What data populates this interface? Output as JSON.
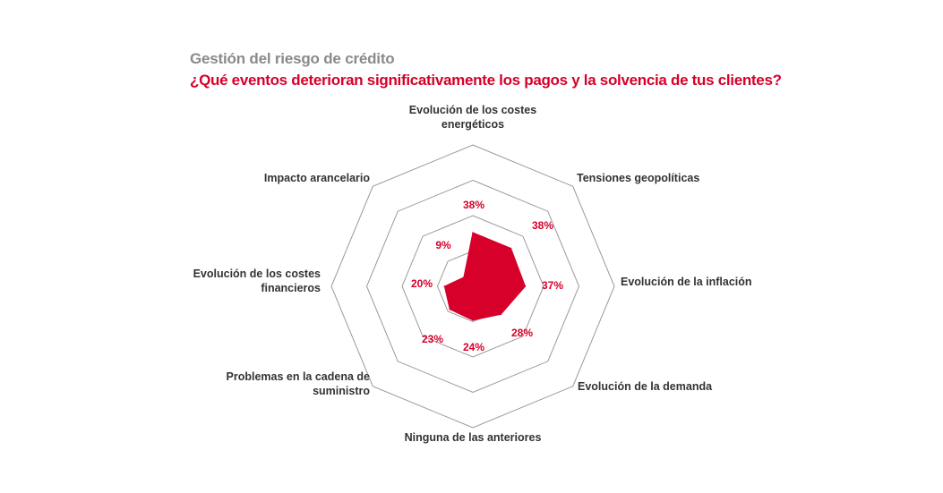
{
  "header": {
    "title": "Gestión del riesgo de crédito",
    "subtitle": "¿Qué eventos deterioran significativamente los pagos y la solvencia de tus clientes?"
  },
  "colors": {
    "accent": "#d6002a",
    "grid": "#9a9a9a",
    "title": "#8a8a8a",
    "labels": "#333333"
  },
  "chart_data": {
    "type": "radar",
    "title": "Gestión del riesgo de crédito",
    "subtitle": "¿Qué eventos deterioran significativamente los pagos y la solvencia de tus clientes?",
    "axes": [
      {
        "lines": [
          "Evolución de los costes",
          "energéticos"
        ],
        "value": 38,
        "value_label": "38%"
      },
      {
        "lines": [
          "Tensiones geopolíticas"
        ],
        "value": 38,
        "value_label": "38%"
      },
      {
        "lines": [
          "Evolución de la inflación"
        ],
        "value": 37,
        "value_label": "37%"
      },
      {
        "lines": [
          "Evolución de la demanda"
        ],
        "value": 28,
        "value_label": "28%"
      },
      {
        "lines": [
          "Ninguna de las anteriores"
        ],
        "value": 24,
        "value_label": "24%"
      },
      {
        "lines": [
          "Problemas en la cadena de",
          "suministro"
        ],
        "value": 23,
        "value_label": "23%"
      },
      {
        "lines": [
          "Evolución de los costes",
          "financieros"
        ],
        "value": 20,
        "value_label": "20%"
      },
      {
        "lines": [
          "Impacto arancelario"
        ],
        "value": 9,
        "value_label": "9%"
      }
    ],
    "grid_levels": 4,
    "grid_shape": "octagon",
    "value_unit": "%",
    "legend": "none"
  }
}
